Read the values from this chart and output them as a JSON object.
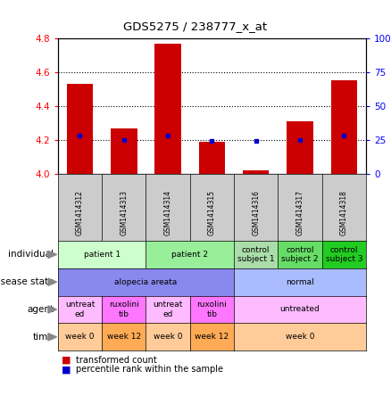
{
  "title": "GDS5275 / 238777_x_at",
  "samples": [
    "GSM1414312",
    "GSM1414313",
    "GSM1414314",
    "GSM1414315",
    "GSM1414316",
    "GSM1414317",
    "GSM1414318"
  ],
  "transformed_count": [
    4.53,
    4.27,
    4.77,
    4.19,
    4.02,
    4.31,
    4.55
  ],
  "percentile_rank": [
    28,
    25,
    28,
    24,
    24,
    25,
    28
  ],
  "ylim": [
    4.0,
    4.8
  ],
  "yticks": [
    4.0,
    4.2,
    4.4,
    4.6,
    4.8
  ],
  "y2ticks": [
    0,
    25,
    50,
    75,
    100
  ],
  "y2labels": [
    "0",
    "25",
    "50",
    "75",
    "100%"
  ],
  "bar_color": "#cc0000",
  "dot_color": "#0000cc",
  "individual_row": {
    "label": "individual",
    "segments": [
      {
        "text": "patient 1",
        "cols": [
          0,
          1
        ],
        "color": "#ccffcc"
      },
      {
        "text": "patient 2",
        "cols": [
          2,
          3
        ],
        "color": "#99ee99"
      },
      {
        "text": "control\nsubject 1",
        "cols": [
          4
        ],
        "color": "#aaddaa"
      },
      {
        "text": "control\nsubject 2",
        "cols": [
          5
        ],
        "color": "#66dd66"
      },
      {
        "text": "control\nsubject 3",
        "cols": [
          6
        ],
        "color": "#22cc22"
      }
    ]
  },
  "disease_row": {
    "label": "disease state",
    "segments": [
      {
        "text": "alopecia areata",
        "cols": [
          0,
          1,
          2,
          3
        ],
        "color": "#8888ee"
      },
      {
        "text": "normal",
        "cols": [
          4,
          5,
          6
        ],
        "color": "#aabbff"
      }
    ]
  },
  "agent_row": {
    "label": "agent",
    "segments": [
      {
        "text": "untreat\ned",
        "cols": [
          0
        ],
        "color": "#ffbbff"
      },
      {
        "text": "ruxolini\ntib",
        "cols": [
          1
        ],
        "color": "#ff77ff"
      },
      {
        "text": "untreat\ned",
        "cols": [
          2
        ],
        "color": "#ffbbff"
      },
      {
        "text": "ruxolini\ntib",
        "cols": [
          3
        ],
        "color": "#ff77ff"
      },
      {
        "text": "untreated",
        "cols": [
          4,
          5,
          6
        ],
        "color": "#ffbbff"
      }
    ]
  },
  "time_row": {
    "label": "time",
    "segments": [
      {
        "text": "week 0",
        "cols": [
          0
        ],
        "color": "#ffcc99"
      },
      {
        "text": "week 12",
        "cols": [
          1
        ],
        "color": "#ffaa55"
      },
      {
        "text": "week 0",
        "cols": [
          2
        ],
        "color": "#ffcc99"
      },
      {
        "text": "week 12",
        "cols": [
          3
        ],
        "color": "#ffaa55"
      },
      {
        "text": "week 0",
        "cols": [
          4,
          5,
          6
        ],
        "color": "#ffcc99"
      }
    ]
  },
  "legend_items": [
    {
      "color": "#cc0000",
      "label": "transformed count"
    },
    {
      "color": "#0000cc",
      "label": "percentile rank within the sample"
    }
  ]
}
